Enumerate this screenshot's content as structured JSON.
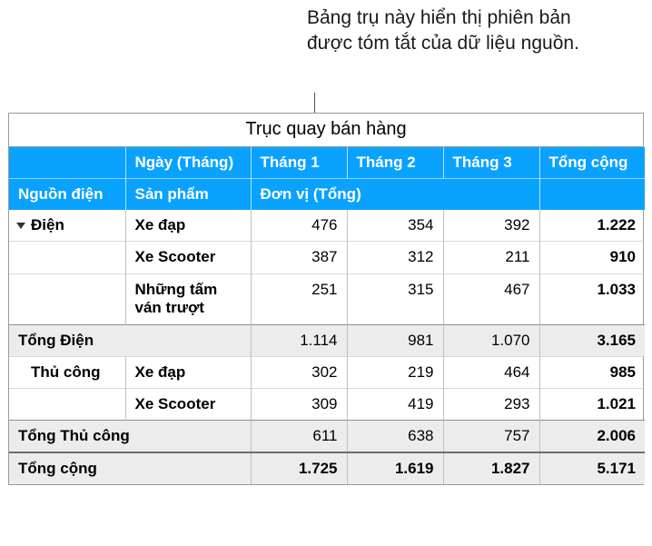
{
  "colors": {
    "header_bg": "#0aa2ff",
    "header_text": "#ffffff",
    "subtotal_bg": "#ececec",
    "border": "#9a9a9a"
  },
  "callout": {
    "text": "Bảng trụ này hiển thị phiên bản được tóm tắt của dữ liệu nguồn."
  },
  "pivot": {
    "title": "Trục quay bán hàng",
    "header_row1": {
      "date_label": "Ngày (Tháng)",
      "m1": "Tháng 1",
      "m2": "Tháng 2",
      "m3": "Tháng 3",
      "total": "Tổng cộng"
    },
    "header_row2": {
      "source": "Nguồn điện",
      "product": "Sản phẩm",
      "unit_total": "Đơn vị (Tổng)"
    },
    "groups": [
      {
        "name": "Điện",
        "expanded": true,
        "rows": [
          {
            "product": "Xe đạp",
            "m1": "476",
            "m2": "354",
            "m3": "392",
            "total": "1.222"
          },
          {
            "product": "Xe Scooter",
            "m1": "387",
            "m2": "312",
            "m3": "211",
            "total": "910"
          },
          {
            "product": "Những tấm ván trượt",
            "m1": "251",
            "m2": "315",
            "m3": "467",
            "total": "1.033"
          }
        ],
        "subtotal": {
          "label": "Tổng Điện",
          "m1": "1.114",
          "m2": "981",
          "m3": "1.070",
          "total": "3.165"
        }
      },
      {
        "name": "Thủ công",
        "expanded": false,
        "rows": [
          {
            "product": "Xe đạp",
            "m1": "302",
            "m2": "219",
            "m3": "464",
            "total": "985"
          },
          {
            "product": "Xe Scooter",
            "m1": "309",
            "m2": "419",
            "m3": "293",
            "total": "1.021"
          }
        ],
        "subtotal": {
          "label": "Tổng Thủ công",
          "m1": "611",
          "m2": "638",
          "m3": "757",
          "total": "2.006"
        }
      }
    ],
    "grand_total": {
      "label": "Tổng cộng",
      "m1": "1.725",
      "m2": "1.619",
      "m3": "1.827",
      "total": "5.171"
    }
  }
}
